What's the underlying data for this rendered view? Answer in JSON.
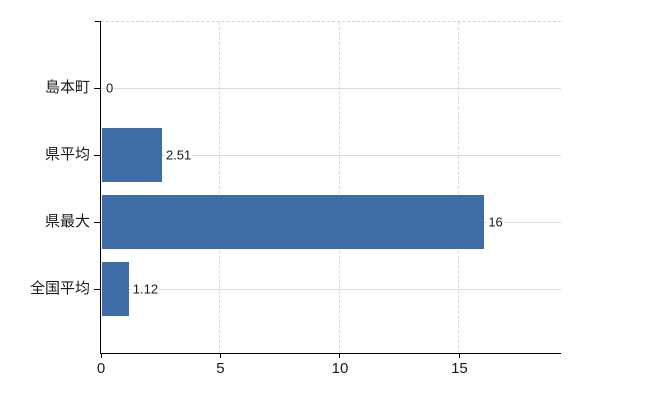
{
  "chart_data": {
    "type": "bar",
    "orientation": "horizontal",
    "title": "",
    "xlabel": "",
    "ylabel": "",
    "categories": [
      "島本町",
      "県平均",
      "県最大",
      "全国平均"
    ],
    "values": [
      0,
      2.51,
      16,
      1.12
    ],
    "value_labels": [
      "0",
      "2.51",
      "16",
      "1.12"
    ],
    "x_ticks": [
      0,
      5,
      10,
      15
    ],
    "x_tick_labels": [
      "0",
      "5",
      "10",
      "15"
    ],
    "xlim": [
      0,
      19.25
    ],
    "grid": true,
    "legend_position": "none",
    "colors": {
      "bar": "#3e6da7",
      "horizontal_gridline": "#d9ded9",
      "dashed_gridline": "#d8d8d8",
      "top_boundary_dashed": "#d4d4d4",
      "axis": "#000000",
      "text": "#1a1a1a",
      "background": "#ffffff"
    }
  }
}
